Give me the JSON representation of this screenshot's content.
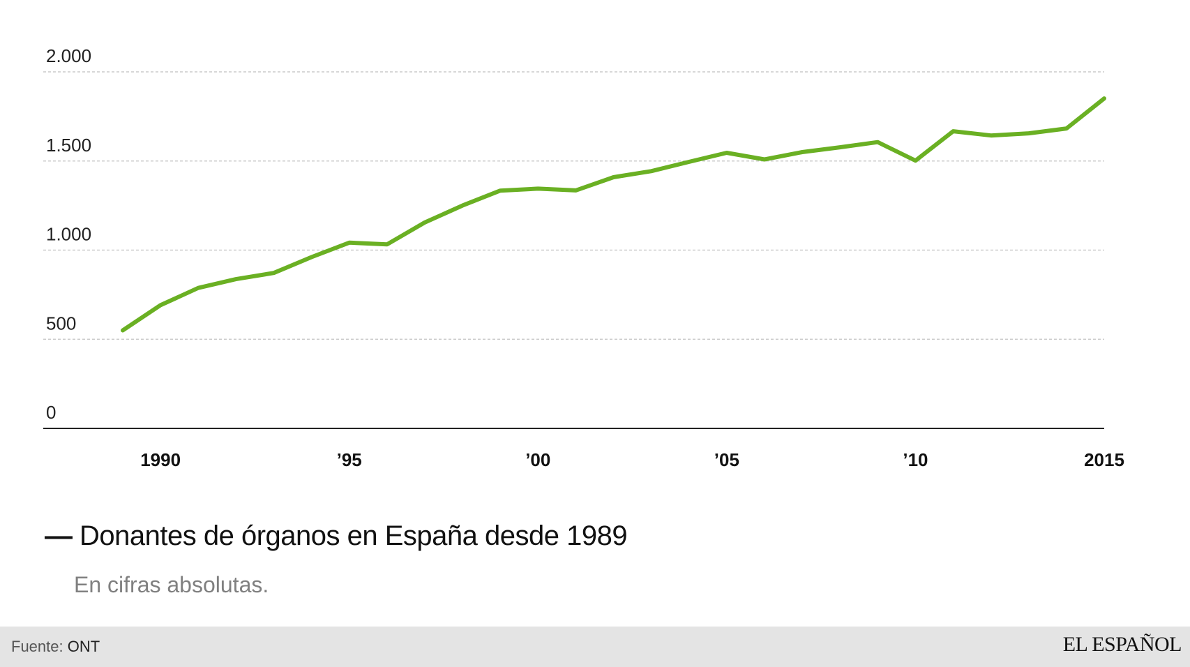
{
  "chart_data": {
    "type": "line",
    "title": "Donantes de órganos en España desde 1989",
    "subtitle": "En cifras absolutas.",
    "xlabel": "",
    "ylabel": "",
    "x": [
      1989,
      1990,
      1991,
      1992,
      1993,
      1994,
      1995,
      1996,
      1997,
      1998,
      1999,
      2000,
      2001,
      2002,
      2003,
      2004,
      2005,
      2006,
      2007,
      2008,
      2009,
      2010,
      2011,
      2012,
      2013,
      2014,
      2015
    ],
    "series": [
      {
        "name": "Donantes de órganos en España desde 1989",
        "color": "#6ab023",
        "values": [
          550,
          691,
          788,
          837,
          872,
          961,
          1042,
          1032,
          1155,
          1250,
          1334,
          1345,
          1335,
          1409,
          1443,
          1495,
          1546,
          1509,
          1550,
          1577,
          1606,
          1502,
          1667,
          1643,
          1655,
          1682,
          1851
        ]
      }
    ],
    "ylim": [
      0,
      2000
    ],
    "yticks": [
      {
        "value": 0,
        "label": "0"
      },
      {
        "value": 500,
        "label": "500"
      },
      {
        "value": 1000,
        "label": "1.000"
      },
      {
        "value": 1500,
        "label": "1.500"
      },
      {
        "value": 2000,
        "label": "2.000"
      }
    ],
    "xticks": [
      {
        "value": 1990,
        "label": "1990"
      },
      {
        "value": 1995,
        "label": "’95"
      },
      {
        "value": 2000,
        "label": "’00"
      },
      {
        "value": 2005,
        "label": "’05"
      },
      {
        "value": 2010,
        "label": "’10"
      },
      {
        "value": 2015,
        "label": "2015"
      }
    ],
    "gridlines": true,
    "legend": "bottom-left"
  },
  "legend": {
    "swatch": "—"
  },
  "footer": {
    "source_label": "Fuente:",
    "source_value": "ONT",
    "logo_text": "EL ESPAÑOL"
  },
  "colors": {
    "line": "#6ab023",
    "grid": "#cccccc",
    "axis": "#222222",
    "footer_bg": "#e4e4e4"
  }
}
